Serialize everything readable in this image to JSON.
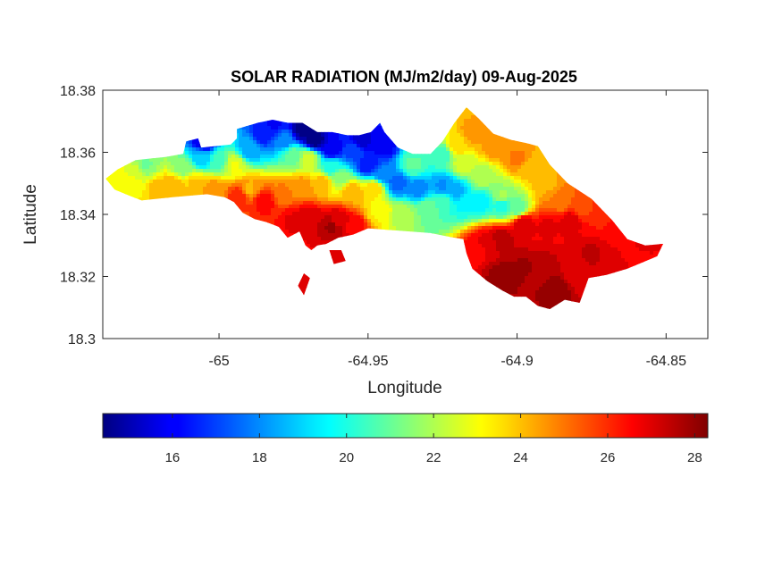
{
  "chart_data": {
    "type": "heatmap",
    "title": "SOLAR RADIATION (MJ/m2/day) 09-Aug-2025",
    "xlabel": "Longitude",
    "ylabel": "Latitude",
    "xlim": [
      -65.039,
      -64.836
    ],
    "ylim": [
      18.3,
      18.38
    ],
    "x_ticks": [
      -65,
      -64.95,
      -64.9,
      -64.85
    ],
    "x_tick_labels": [
      "-65",
      "-64.95",
      "-64.9",
      "-64.85"
    ],
    "y_ticks": [
      18.3,
      18.32,
      18.34,
      18.36,
      18.38
    ],
    "y_tick_labels": [
      "18.3",
      "18.32",
      "18.34",
      "18.36",
      "18.38"
    ],
    "colormap": "jet",
    "colorbar": {
      "orientation": "horizontal",
      "limits": [
        14.4,
        28.3
      ],
      "ticks": [
        16,
        18,
        20,
        22,
        24,
        26,
        28
      ],
      "tick_labels": [
        "16",
        "18",
        "20",
        "22",
        "24",
        "26",
        "28"
      ]
    },
    "regions": [
      {
        "name": "western island",
        "outline_lonlat": [
          [
            -65.038,
            18.3515
          ],
          [
            -65.034,
            18.3545
          ],
          [
            -65.028,
            18.3575
          ],
          [
            -65.018,
            18.3585
          ],
          [
            -65.012,
            18.3595
          ],
          [
            -65.011,
            18.3635
          ],
          [
            -65.007,
            18.3645
          ],
          [
            -65.006,
            18.3615
          ],
          [
            -64.996,
            18.3625
          ],
          [
            -64.994,
            18.3645
          ],
          [
            -64.994,
            18.3675
          ],
          [
            -64.987,
            18.3695
          ],
          [
            -64.982,
            18.3705
          ],
          [
            -64.977,
            18.3695
          ],
          [
            -64.972,
            18.3695
          ],
          [
            -64.967,
            18.3665
          ],
          [
            -64.962,
            18.3665
          ],
          [
            -64.957,
            18.3655
          ],
          [
            -64.953,
            18.3655
          ],
          [
            -64.949,
            18.3665
          ],
          [
            -64.946,
            18.3695
          ],
          [
            -64.9445,
            18.3665
          ],
          [
            -64.94,
            18.3615
          ],
          [
            -64.935,
            18.3595
          ],
          [
            -64.929,
            18.3595
          ],
          [
            -64.925,
            18.3635
          ],
          [
            -64.921,
            18.3695
          ],
          [
            -64.917,
            18.3745
          ],
          [
            -64.913,
            18.371
          ],
          [
            -64.908,
            18.366
          ],
          [
            -64.902,
            18.364
          ],
          [
            -64.897,
            18.363
          ],
          [
            -64.893,
            18.362
          ],
          [
            -64.889,
            18.356
          ],
          [
            -64.883,
            18.35
          ],
          [
            -64.875,
            18.345
          ],
          [
            -64.868,
            18.338
          ],
          [
            -64.863,
            18.332
          ],
          [
            -64.857,
            18.33
          ],
          [
            -64.851,
            18.3305
          ],
          [
            -64.853,
            18.3265
          ],
          [
            -64.858,
            18.3245
          ],
          [
            -64.863,
            18.3225
          ],
          [
            -64.87,
            18.3205
          ],
          [
            -64.876,
            18.3195
          ],
          [
            -64.879,
            18.3115
          ],
          [
            -64.884,
            18.3125
          ],
          [
            -64.889,
            18.3095
          ],
          [
            -64.893,
            18.3105
          ],
          [
            -64.897,
            18.3135
          ],
          [
            -64.901,
            18.3135
          ],
          [
            -64.905,
            18.3155
          ],
          [
            -64.91,
            18.3185
          ],
          [
            -64.915,
            18.3225
          ],
          [
            -64.917,
            18.3275
          ],
          [
            -64.918,
            18.332
          ],
          [
            -64.924,
            18.333
          ],
          [
            -64.929,
            18.334
          ],
          [
            -64.936,
            18.3345
          ],
          [
            -64.943,
            18.335
          ],
          [
            -64.95,
            18.3355
          ],
          [
            -64.955,
            18.3335
          ],
          [
            -64.96,
            18.3325
          ],
          [
            -64.964,
            18.3305
          ],
          [
            -64.967,
            18.33
          ],
          [
            -64.969,
            18.3285
          ],
          [
            -64.971,
            18.33
          ],
          [
            -64.973,
            18.3345
          ],
          [
            -64.977,
            18.3325
          ],
          [
            -64.98,
            18.336
          ],
          [
            -64.984,
            18.3375
          ],
          [
            -64.988,
            18.3385
          ],
          [
            -64.992,
            18.3405
          ],
          [
            -64.995,
            18.344
          ],
          [
            -64.998,
            18.3455
          ],
          [
            -65.004,
            18.3465
          ],
          [
            -65.01,
            18.346
          ],
          [
            -65.016,
            18.3455
          ],
          [
            -65.021,
            18.345
          ],
          [
            -65.026,
            18.3445
          ],
          [
            -65.03,
            18.346
          ],
          [
            -65.035,
            18.348
          ]
        ]
      },
      {
        "name": "southern islet",
        "outline_lonlat": [
          [
            -64.963,
            18.3285
          ],
          [
            -64.959,
            18.3285
          ],
          [
            -64.9575,
            18.325
          ],
          [
            -64.9615,
            18.324
          ]
        ]
      },
      {
        "name": "southwest islet",
        "outline_lonlat": [
          [
            -64.9715,
            18.321
          ],
          [
            -64.9695,
            18.3195
          ],
          [
            -64.9715,
            18.314
          ],
          [
            -64.9735,
            18.317
          ]
        ]
      }
    ],
    "field_samples_lon_lat_value": [
      [
        -65.035,
        18.3525,
        23.0
      ],
      [
        -65.028,
        18.354,
        22.4
      ],
      [
        -65.025,
        18.356,
        21.2
      ],
      [
        -65.02,
        18.348,
        24.0
      ],
      [
        -65.012,
        18.355,
        21.5
      ],
      [
        -65.006,
        18.3585,
        18.8
      ],
      [
        -65.005,
        18.363,
        15.6
      ],
      [
        -65.0,
        18.3575,
        20.5
      ],
      [
        -64.995,
        18.356,
        22.8
      ],
      [
        -64.99,
        18.361,
        18.5
      ],
      [
        -64.985,
        18.366,
        16.4
      ],
      [
        -64.981,
        18.369,
        16.2
      ],
      [
        -64.978,
        18.364,
        18.0
      ],
      [
        -64.975,
        18.359,
        21.0
      ],
      [
        -64.972,
        18.367,
        14.5
      ],
      [
        -64.968,
        18.364,
        14.4
      ],
      [
        -64.962,
        18.361,
        15.8
      ],
      [
        -64.962,
        18.355,
        19.8
      ],
      [
        -64.955,
        18.36,
        17.2
      ],
      [
        -64.95,
        18.356,
        16.3
      ],
      [
        -64.945,
        18.353,
        17.8
      ],
      [
        -64.94,
        18.35,
        17.5
      ],
      [
        -64.933,
        18.348,
        18.0
      ],
      [
        -64.925,
        18.349,
        18.2
      ],
      [
        -64.92,
        18.3475,
        18.6
      ],
      [
        -64.917,
        18.344,
        19.6
      ],
      [
        -64.912,
        18.344,
        19.5
      ],
      [
        -64.905,
        18.343,
        20.0
      ],
      [
        -64.9,
        18.342,
        21.0
      ],
      [
        -64.905,
        18.346,
        21.8
      ],
      [
        -64.912,
        18.352,
        22.0
      ],
      [
        -64.918,
        18.356,
        22.5
      ],
      [
        -64.92,
        18.362,
        23.5
      ],
      [
        -64.915,
        18.366,
        24.5
      ],
      [
        -64.908,
        18.362,
        24.5
      ],
      [
        -64.9,
        18.358,
        24.8
      ],
      [
        -64.895,
        18.3545,
        23.8
      ],
      [
        -64.89,
        18.35,
        24.2
      ],
      [
        -64.885,
        18.344,
        25.0
      ],
      [
        -64.878,
        18.342,
        25.6
      ],
      [
        -64.872,
        18.339,
        26.2
      ],
      [
        -64.866,
        18.333,
        26.6
      ],
      [
        -64.858,
        18.331,
        26.8
      ],
      [
        -64.882,
        18.338,
        27.0
      ],
      [
        -64.89,
        18.336,
        26.8
      ],
      [
        -64.898,
        18.337,
        27.2
      ],
      [
        -64.905,
        18.332,
        27.6
      ],
      [
        -64.91,
        18.331,
        27.0
      ],
      [
        -64.913,
        18.329,
        26.6
      ],
      [
        -64.905,
        18.32,
        28.0
      ],
      [
        -64.898,
        18.323,
        27.8
      ],
      [
        -64.892,
        18.322,
        27.6
      ],
      [
        -64.887,
        18.316,
        28.0
      ],
      [
        -64.88,
        18.321,
        26.8
      ],
      [
        -64.875,
        18.327,
        27.3
      ],
      [
        -64.868,
        18.325,
        27.2
      ],
      [
        -64.862,
        18.328,
        26.5
      ],
      [
        -64.955,
        18.347,
        24.2
      ],
      [
        -64.948,
        18.348,
        23.5
      ],
      [
        -64.96,
        18.352,
        21.6
      ],
      [
        -64.965,
        18.35,
        24.0
      ],
      [
        -64.972,
        18.349,
        24.5
      ],
      [
        -64.978,
        18.347,
        24.8
      ],
      [
        -64.985,
        18.344,
        26.5
      ],
      [
        -64.97,
        18.339,
        27.2
      ],
      [
        -64.96,
        18.338,
        27.0
      ],
      [
        -64.955,
        18.336,
        26.7
      ],
      [
        -64.962,
        18.336,
        27.8
      ],
      [
        -64.975,
        18.338,
        26.8
      ],
      [
        -64.99,
        18.348,
        24.2
      ],
      [
        -64.993,
        18.346,
        26.2
      ],
      [
        -65.002,
        18.348,
        24.5
      ],
      [
        -65.008,
        18.35,
        23.8
      ],
      [
        -65.015,
        18.349,
        24.2
      ],
      [
        -65.03,
        18.35,
        23.2
      ],
      [
        -64.946,
        18.341,
        23.2
      ],
      [
        -64.938,
        18.34,
        22.0
      ],
      [
        -64.93,
        18.342,
        21.2
      ],
      [
        -64.925,
        18.344,
        20.5
      ],
      [
        -64.96,
        18.3265,
        26.8
      ],
      [
        -64.9715,
        18.3175,
        27.2
      ],
      [
        -64.925,
        18.359,
        20.5
      ],
      [
        -64.935,
        18.356,
        20.8
      ],
      [
        -64.945,
        18.362,
        15.9
      ],
      [
        -64.952,
        18.364,
        15.5
      ],
      [
        -64.97,
        18.358,
        22.5
      ]
    ]
  }
}
